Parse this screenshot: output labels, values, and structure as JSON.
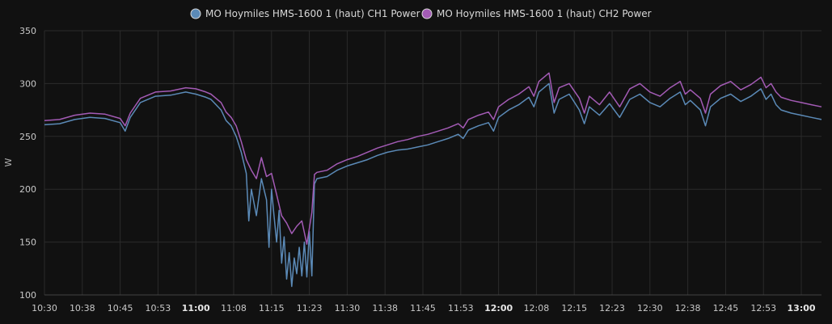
{
  "chart_data": {
    "type": "line",
    "ylabel": "W",
    "ylim": [
      100,
      350
    ],
    "yticks": [
      100,
      150,
      200,
      250,
      300,
      350
    ],
    "xticks": [
      {
        "label": "10:30",
        "bold": false,
        "t": 0
      },
      {
        "label": "10:38",
        "bold": false,
        "t": 7.5
      },
      {
        "label": "10:45",
        "bold": false,
        "t": 15
      },
      {
        "label": "10:53",
        "bold": false,
        "t": 22.5
      },
      {
        "label": "11:00",
        "bold": true,
        "t": 30
      },
      {
        "label": "11:08",
        "bold": false,
        "t": 37.5
      },
      {
        "label": "11:15",
        "bold": false,
        "t": 45
      },
      {
        "label": "11:23",
        "bold": false,
        "t": 52.5
      },
      {
        "label": "11:30",
        "bold": false,
        "t": 60
      },
      {
        "label": "11:38",
        "bold": false,
        "t": 67.5
      },
      {
        "label": "11:45",
        "bold": false,
        "t": 75
      },
      {
        "label": "11:53",
        "bold": false,
        "t": 82.5
      },
      {
        "label": "12:00",
        "bold": true,
        "t": 90
      },
      {
        "label": "12:08",
        "bold": false,
        "t": 97.5
      },
      {
        "label": "12:15",
        "bold": false,
        "t": 105
      },
      {
        "label": "12:23",
        "bold": false,
        "t": 112.5
      },
      {
        "label": "12:30",
        "bold": false,
        "t": 120
      },
      {
        "label": "12:38",
        "bold": false,
        "t": 127.5
      },
      {
        "label": "12:45",
        "bold": false,
        "t": 135
      },
      {
        "label": "12:53",
        "bold": false,
        "t": 142.5
      },
      {
        "label": "13:00",
        "bold": true,
        "t": 150
      }
    ],
    "x_units": "minutes after 10:30",
    "xlim": [
      0,
      154
    ],
    "grid": true,
    "legend_position": "top-center",
    "series": [
      {
        "name": "MO Hoymiles HMS-1600 1 (haut) CH1 Power",
        "color": "#5b8ab7",
        "points": [
          [
            0,
            261
          ],
          [
            3,
            262
          ],
          [
            6,
            266
          ],
          [
            9,
            268
          ],
          [
            12,
            267
          ],
          [
            15,
            263
          ],
          [
            16,
            255
          ],
          [
            17,
            268
          ],
          [
            19,
            282
          ],
          [
            22,
            288
          ],
          [
            25,
            289
          ],
          [
            28,
            292
          ],
          [
            30,
            290
          ],
          [
            32,
            287
          ],
          [
            33,
            285
          ],
          [
            35,
            275
          ],
          [
            36,
            265
          ],
          [
            37,
            260
          ],
          [
            38,
            250
          ],
          [
            39,
            235
          ],
          [
            40,
            215
          ],
          [
            40.5,
            170
          ],
          [
            41,
            200
          ],
          [
            42,
            175
          ],
          [
            43,
            210
          ],
          [
            44,
            190
          ],
          [
            44.5,
            145
          ],
          [
            45,
            200
          ],
          [
            45.5,
            175
          ],
          [
            46,
            150
          ],
          [
            46.5,
            180
          ],
          [
            47,
            130
          ],
          [
            47.5,
            155
          ],
          [
            48,
            115
          ],
          [
            48.5,
            140
          ],
          [
            49,
            108
          ],
          [
            49.5,
            135
          ],
          [
            50,
            120
          ],
          [
            50.5,
            145
          ],
          [
            51,
            118
          ],
          [
            51.5,
            150
          ],
          [
            52,
            117
          ],
          [
            52.5,
            160
          ],
          [
            53,
            118
          ],
          [
            53.5,
            205
          ],
          [
            54,
            210
          ],
          [
            56,
            212
          ],
          [
            58,
            218
          ],
          [
            60,
            222
          ],
          [
            62,
            225
          ],
          [
            64,
            228
          ],
          [
            66,
            232
          ],
          [
            68,
            235
          ],
          [
            70,
            237
          ],
          [
            72,
            238
          ],
          [
            74,
            240
          ],
          [
            76,
            242
          ],
          [
            78,
            245
          ],
          [
            80,
            248
          ],
          [
            82,
            252
          ],
          [
            83,
            248
          ],
          [
            84,
            256
          ],
          [
            86,
            260
          ],
          [
            88,
            263
          ],
          [
            89,
            255
          ],
          [
            90,
            268
          ],
          [
            92,
            275
          ],
          [
            94,
            280
          ],
          [
            96,
            287
          ],
          [
            97,
            278
          ],
          [
            98,
            292
          ],
          [
            100,
            300
          ],
          [
            101,
            272
          ],
          [
            102,
            285
          ],
          [
            104,
            290
          ],
          [
            106,
            275
          ],
          [
            107,
            262
          ],
          [
            108,
            278
          ],
          [
            110,
            270
          ],
          [
            112,
            281
          ],
          [
            114,
            268
          ],
          [
            116,
            285
          ],
          [
            118,
            290
          ],
          [
            120,
            282
          ],
          [
            122,
            278
          ],
          [
            124,
            286
          ],
          [
            126,
            292
          ],
          [
            127,
            280
          ],
          [
            128,
            284
          ],
          [
            130,
            275
          ],
          [
            131,
            260
          ],
          [
            132,
            278
          ],
          [
            134,
            286
          ],
          [
            136,
            290
          ],
          [
            138,
            283
          ],
          [
            140,
            288
          ],
          [
            142,
            295
          ],
          [
            143,
            285
          ],
          [
            144,
            290
          ],
          [
            145,
            280
          ],
          [
            146,
            275
          ],
          [
            148,
            272
          ],
          [
            150,
            270
          ],
          [
            152,
            268
          ],
          [
            154,
            266
          ]
        ]
      },
      {
        "name": "MO Hoymiles HMS-1600 1 (haut) CH2 Power",
        "color": "#a35bb5",
        "points": [
          [
            0,
            265
          ],
          [
            3,
            266
          ],
          [
            6,
            270
          ],
          [
            9,
            272
          ],
          [
            12,
            271
          ],
          [
            15,
            267
          ],
          [
            16,
            260
          ],
          [
            17,
            272
          ],
          [
            19,
            286
          ],
          [
            22,
            292
          ],
          [
            25,
            293
          ],
          [
            28,
            296
          ],
          [
            30,
            295
          ],
          [
            32,
            292
          ],
          [
            33,
            290
          ],
          [
            35,
            282
          ],
          [
            36,
            273
          ],
          [
            37,
            268
          ],
          [
            38,
            260
          ],
          [
            39,
            245
          ],
          [
            40,
            228
          ],
          [
            41,
            218
          ],
          [
            42,
            210
          ],
          [
            43,
            230
          ],
          [
            44,
            212
          ],
          [
            45,
            215
          ],
          [
            46,
            195
          ],
          [
            47,
            175
          ],
          [
            48,
            168
          ],
          [
            49,
            158
          ],
          [
            50,
            165
          ],
          [
            51,
            170
          ],
          [
            52,
            148
          ],
          [
            53,
            178
          ],
          [
            53.5,
            214
          ],
          [
            54,
            216
          ],
          [
            56,
            218
          ],
          [
            58,
            224
          ],
          [
            60,
            228
          ],
          [
            62,
            231
          ],
          [
            64,
            235
          ],
          [
            66,
            239
          ],
          [
            68,
            242
          ],
          [
            70,
            245
          ],
          [
            72,
            247
          ],
          [
            74,
            250
          ],
          [
            76,
            252
          ],
          [
            78,
            255
          ],
          [
            80,
            258
          ],
          [
            82,
            262
          ],
          [
            83,
            258
          ],
          [
            84,
            266
          ],
          [
            86,
            270
          ],
          [
            88,
            273
          ],
          [
            89,
            266
          ],
          [
            90,
            278
          ],
          [
            92,
            285
          ],
          [
            94,
            290
          ],
          [
            96,
            297
          ],
          [
            97,
            288
          ],
          [
            98,
            302
          ],
          [
            100,
            310
          ],
          [
            101,
            282
          ],
          [
            102,
            296
          ],
          [
            104,
            300
          ],
          [
            106,
            286
          ],
          [
            107,
            272
          ],
          [
            108,
            288
          ],
          [
            110,
            280
          ],
          [
            112,
            292
          ],
          [
            114,
            278
          ],
          [
            116,
            295
          ],
          [
            118,
            300
          ],
          [
            120,
            292
          ],
          [
            122,
            288
          ],
          [
            124,
            296
          ],
          [
            126,
            302
          ],
          [
            127,
            290
          ],
          [
            128,
            294
          ],
          [
            130,
            286
          ],
          [
            131,
            272
          ],
          [
            132,
            290
          ],
          [
            134,
            298
          ],
          [
            136,
            302
          ],
          [
            138,
            294
          ],
          [
            140,
            299
          ],
          [
            142,
            306
          ],
          [
            143,
            296
          ],
          [
            144,
            300
          ],
          [
            145,
            292
          ],
          [
            146,
            287
          ],
          [
            148,
            284
          ],
          [
            150,
            282
          ],
          [
            152,
            280
          ],
          [
            154,
            278
          ]
        ]
      }
    ]
  }
}
